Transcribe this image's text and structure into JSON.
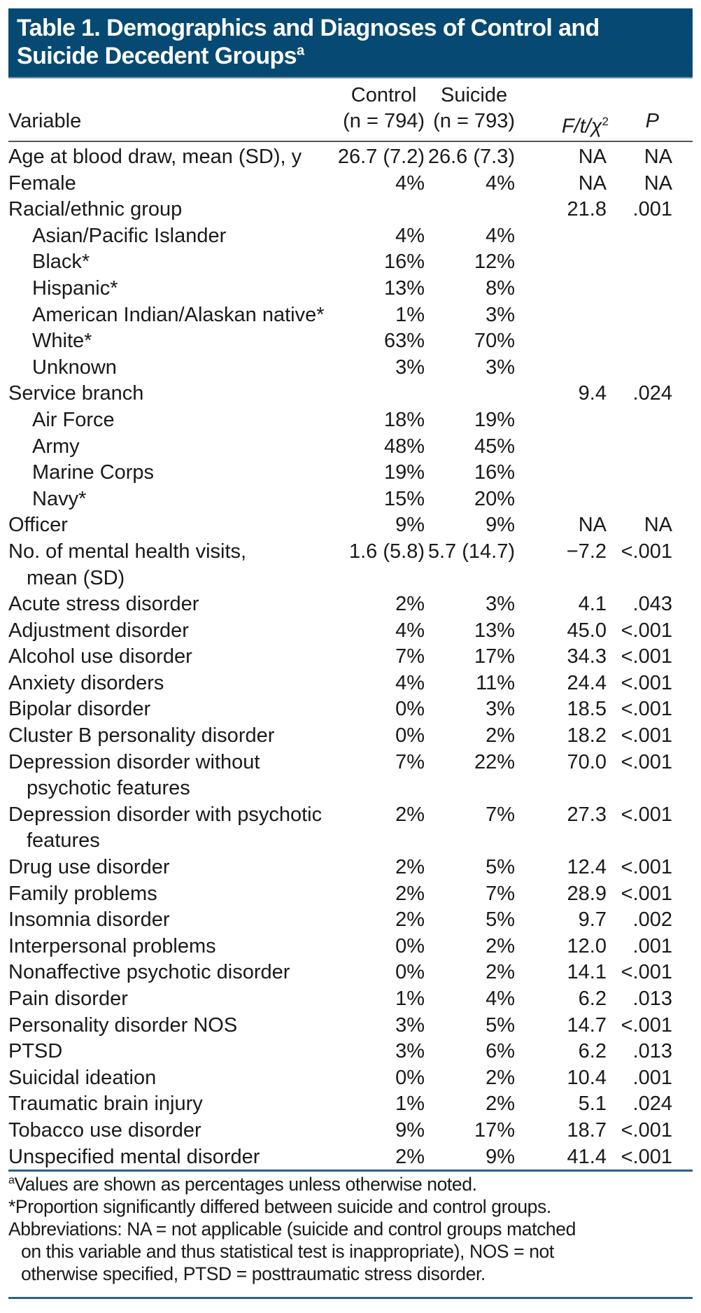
{
  "title": {
    "line1": "Table 1. Demographics and Diagnoses of Control and",
    "line2": "Suicide Decedent Groups",
    "sup": "a"
  },
  "colors": {
    "header_band": "#064a73",
    "rule": "#2c5f86"
  },
  "columns": {
    "variable": "Variable",
    "control_1": "Control",
    "control_2": "(n = 794)",
    "suicide_1": "Suicide",
    "suicide_2": "(n = 793)",
    "stat": "F/t/χ",
    "stat_sup": "2",
    "p": "P"
  },
  "rows": [
    {
      "lines": [
        "Age at blood draw, mean (SD), y"
      ],
      "control": "26.7 (7.2)",
      "suicide": "26.6 (7.3)",
      "stat": "NA",
      "p": "NA"
    },
    {
      "lines": [
        "Female"
      ],
      "control": "4%",
      "suicide": "4%",
      "stat": "NA",
      "p": "NA"
    },
    {
      "lines": [
        "Racial/ethnic group"
      ],
      "control": "",
      "suicide": "",
      "stat": "21.8",
      "p": ".001"
    },
    {
      "lines": [
        "Asian/Pacific Islander"
      ],
      "indent": true,
      "control": "4%",
      "suicide": "4%",
      "stat": "",
      "p": ""
    },
    {
      "lines": [
        "Black*"
      ],
      "indent": true,
      "control": "16%",
      "suicide": "12%",
      "stat": "",
      "p": ""
    },
    {
      "lines": [
        "Hispanic*"
      ],
      "indent": true,
      "control": "13%",
      "suicide": "8%",
      "stat": "",
      "p": ""
    },
    {
      "lines": [
        "American Indian/Alaskan native*"
      ],
      "indent": true,
      "control": "1%",
      "suicide": "3%",
      "stat": "",
      "p": ""
    },
    {
      "lines": [
        "White*"
      ],
      "indent": true,
      "control": "63%",
      "suicide": "70%",
      "stat": "",
      "p": ""
    },
    {
      "lines": [
        "Unknown"
      ],
      "indent": true,
      "control": "3%",
      "suicide": "3%",
      "stat": "",
      "p": ""
    },
    {
      "lines": [
        "Service branch"
      ],
      "control": "",
      "suicide": "",
      "stat": "9.4",
      "p": ".024"
    },
    {
      "lines": [
        "Air Force"
      ],
      "indent": true,
      "control": "18%",
      "suicide": "19%",
      "stat": "",
      "p": ""
    },
    {
      "lines": [
        "Army"
      ],
      "indent": true,
      "control": "48%",
      "suicide": "45%",
      "stat": "",
      "p": ""
    },
    {
      "lines": [
        "Marine Corps"
      ],
      "indent": true,
      "control": "19%",
      "suicide": "16%",
      "stat": "",
      "p": ""
    },
    {
      "lines": [
        "Navy*"
      ],
      "indent": true,
      "control": "15%",
      "suicide": "20%",
      "stat": "",
      "p": ""
    },
    {
      "lines": [
        "Officer"
      ],
      "control": "9%",
      "suicide": "9%",
      "stat": "NA",
      "p": "NA"
    },
    {
      "lines": [
        "No. of mental health visits,",
        "mean (SD)"
      ],
      "control": "1.6 (5.8)",
      "suicide": "5.7 (14.7)",
      "stat": "−7.2",
      "p": "<.001"
    },
    {
      "lines": [
        "Acute stress disorder"
      ],
      "control": "2%",
      "suicide": "3%",
      "stat": "4.1",
      "p": ".043"
    },
    {
      "lines": [
        "Adjustment disorder"
      ],
      "control": "4%",
      "suicide": "13%",
      "stat": "45.0",
      "p": "<.001"
    },
    {
      "lines": [
        "Alcohol use disorder"
      ],
      "control": "7%",
      "suicide": "17%",
      "stat": "34.3",
      "p": "<.001"
    },
    {
      "lines": [
        "Anxiety disorders"
      ],
      "control": "4%",
      "suicide": "11%",
      "stat": "24.4",
      "p": "<.001"
    },
    {
      "lines": [
        "Bipolar disorder"
      ],
      "control": "0%",
      "suicide": "3%",
      "stat": "18.5",
      "p": "<.001"
    },
    {
      "lines": [
        "Cluster B personality disorder"
      ],
      "control": "0%",
      "suicide": "2%",
      "stat": "18.2",
      "p": "<.001"
    },
    {
      "lines": [
        "Depression disorder without",
        "psychotic features"
      ],
      "control": "7%",
      "suicide": "22%",
      "stat": "70.0",
      "p": "<.001"
    },
    {
      "lines": [
        "Depression disorder with psychotic",
        "features"
      ],
      "control": "2%",
      "suicide": "7%",
      "stat": "27.3",
      "p": "<.001"
    },
    {
      "lines": [
        "Drug use disorder"
      ],
      "control": "2%",
      "suicide": "5%",
      "stat": "12.4",
      "p": "<.001"
    },
    {
      "lines": [
        "Family problems"
      ],
      "control": "2%",
      "suicide": "7%",
      "stat": "28.9",
      "p": "<.001"
    },
    {
      "lines": [
        "Insomnia disorder"
      ],
      "control": "2%",
      "suicide": "5%",
      "stat": "9.7",
      "p": ".002"
    },
    {
      "lines": [
        "Interpersonal problems"
      ],
      "control": "0%",
      "suicide": "2%",
      "stat": "12.0",
      "p": ".001"
    },
    {
      "lines": [
        "Nonaffective psychotic disorder"
      ],
      "control": "0%",
      "suicide": "2%",
      "stat": "14.1",
      "p": "<.001"
    },
    {
      "lines": [
        "Pain disorder"
      ],
      "control": "1%",
      "suicide": "4%",
      "stat": "6.2",
      "p": ".013"
    },
    {
      "lines": [
        "Personality disorder NOS"
      ],
      "control": "3%",
      "suicide": "5%",
      "stat": "14.7",
      "p": "<.001"
    },
    {
      "lines": [
        "PTSD"
      ],
      "control": "3%",
      "suicide": "6%",
      "stat": "6.2",
      "p": ".013"
    },
    {
      "lines": [
        "Suicidal ideation"
      ],
      "control": "0%",
      "suicide": "2%",
      "stat": "10.4",
      "p": ".001"
    },
    {
      "lines": [
        "Traumatic brain injury"
      ],
      "control": "1%",
      "suicide": "2%",
      "stat": "5.1",
      "p": ".024"
    },
    {
      "lines": [
        "Tobacco use disorder"
      ],
      "control": "9%",
      "suicide": "17%",
      "stat": "18.7",
      "p": "<.001"
    },
    {
      "lines": [
        "Unspecified mental disorder"
      ],
      "control": "2%",
      "suicide": "9%",
      "stat": "41.4",
      "p": "<.001"
    }
  ],
  "footnotes": {
    "a_sup": "a",
    "a_text": "Values are shown as percentages unless otherwise noted.",
    "star": "*Proportion significantly differed between suicide and control groups.",
    "abbr_1": "Abbreviations: NA = not applicable (suicide and control groups matched",
    "abbr_2": "on this variable and thus statistical test is inappropriate), NOS = not",
    "abbr_3": "otherwise specified, PTSD = posttraumatic stress disorder."
  }
}
